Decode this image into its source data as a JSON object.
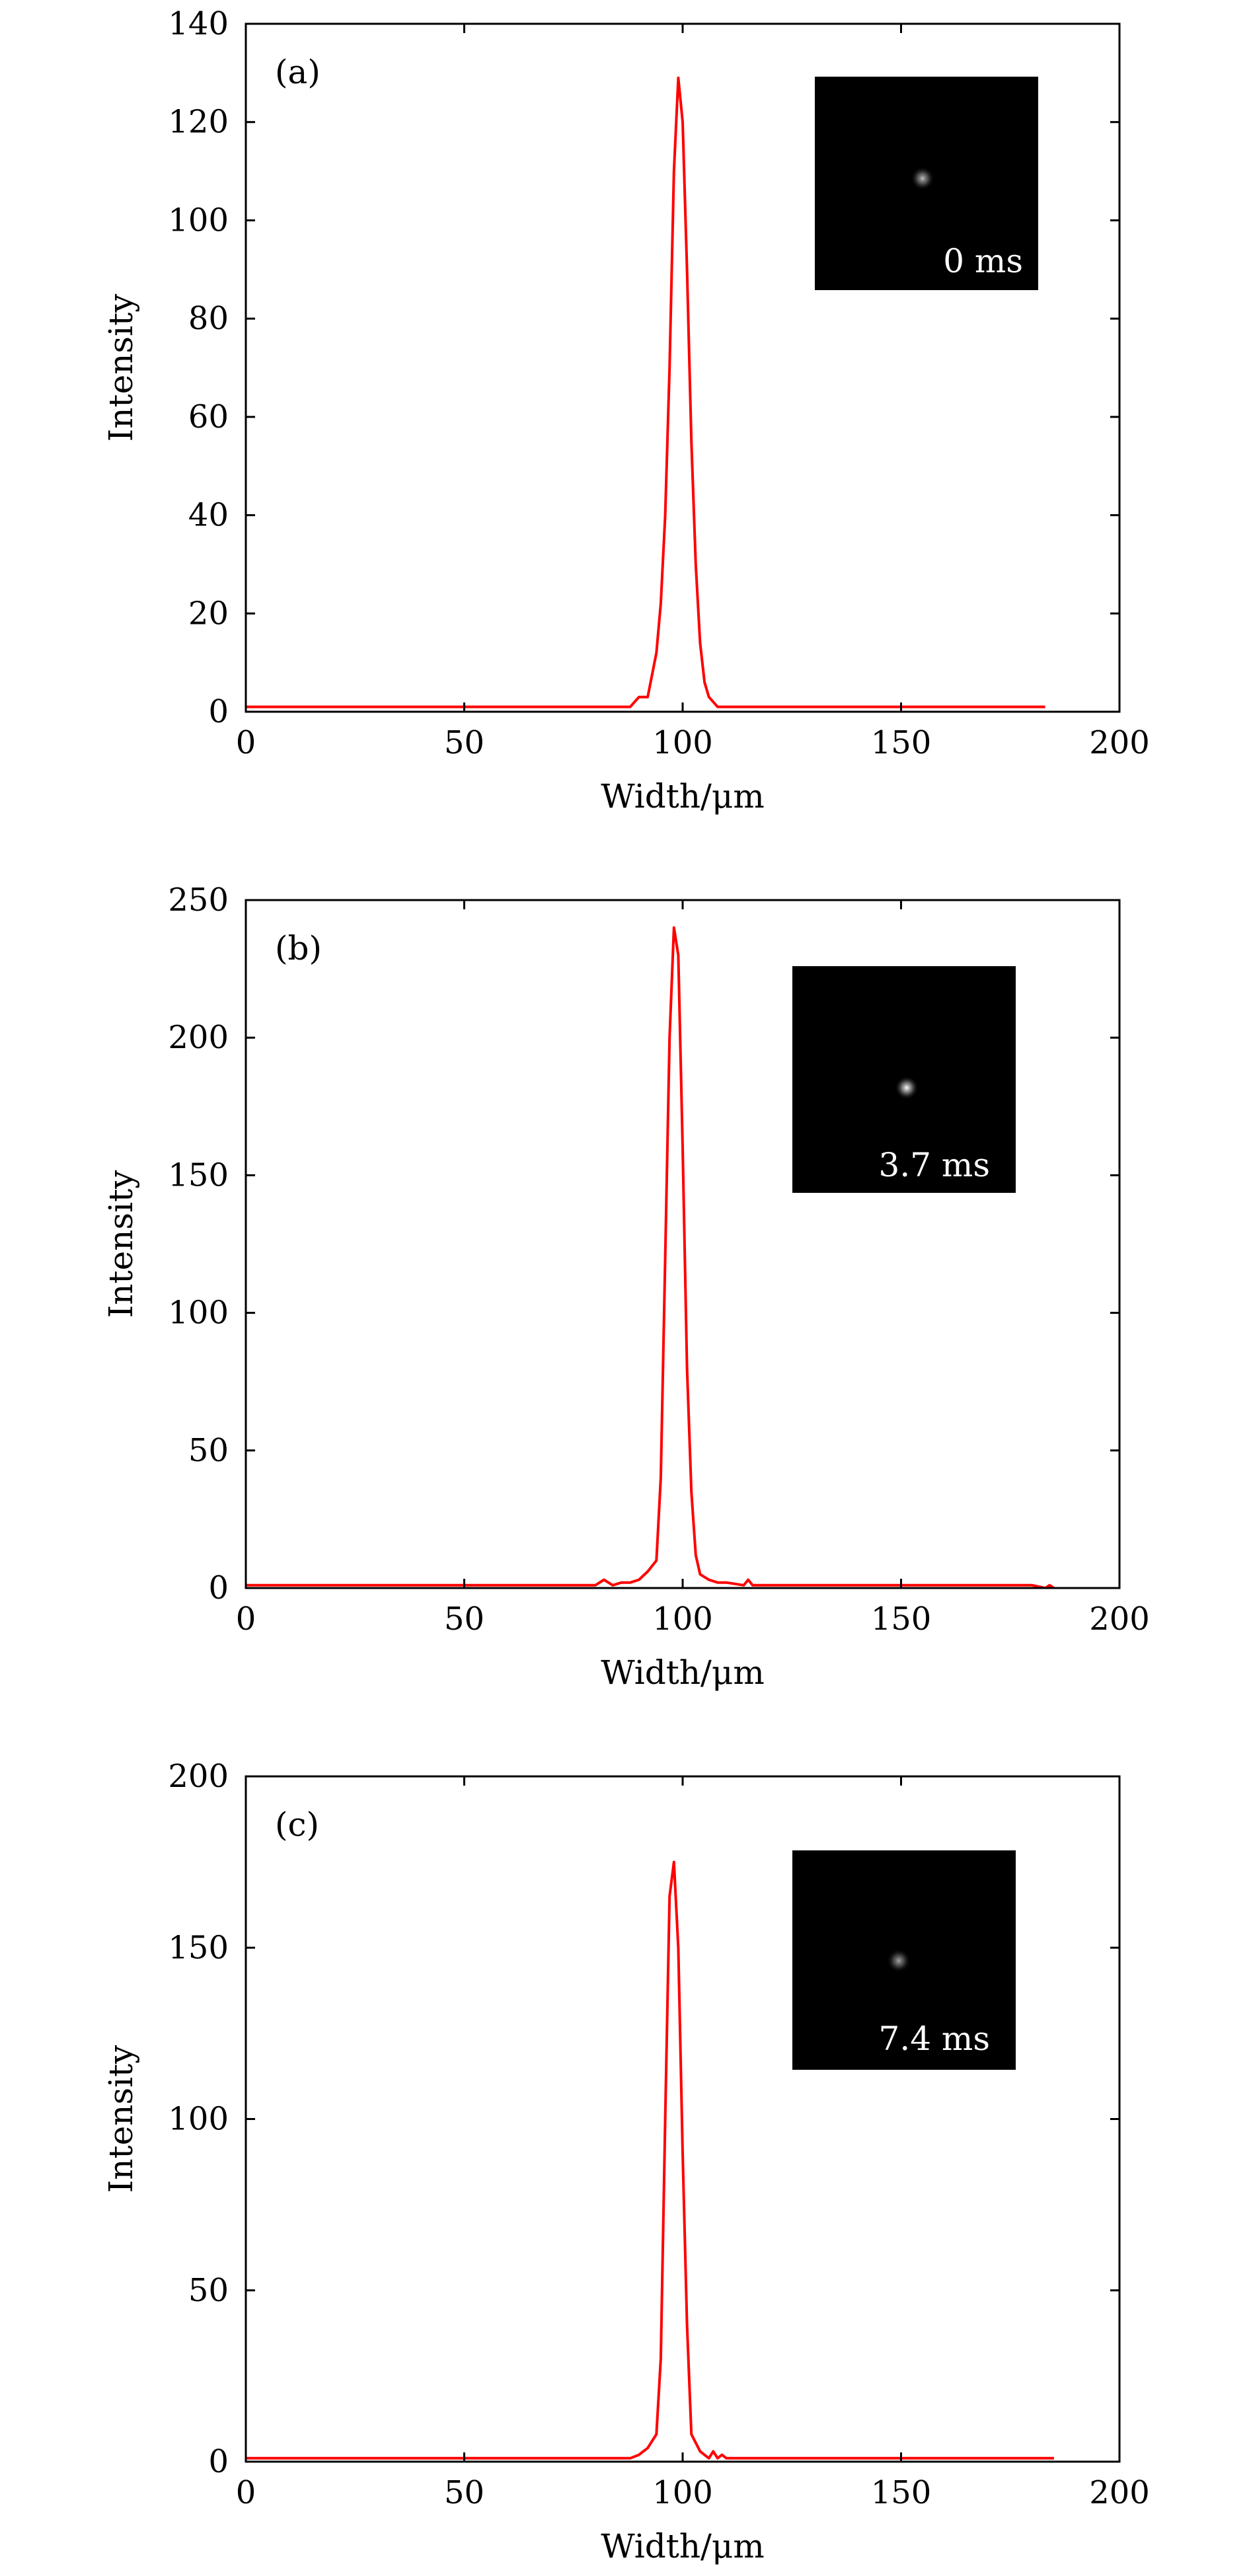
{
  "chart_data": [
    {
      "type": "line",
      "panel_label": "(a)",
      "xlabel": "Width/μm",
      "ylabel": "Intensity",
      "xlim": [
        0,
        200
      ],
      "ylim": [
        0,
        140
      ],
      "xticks": [
        0,
        50,
        100,
        150,
        200
      ],
      "yticks": [
        0,
        20,
        40,
        60,
        80,
        100,
        120,
        140
      ],
      "grid": false,
      "series": [
        {
          "color": "#ff0000",
          "x": [
            0,
            20,
            40,
            60,
            80,
            88,
            90,
            92,
            94,
            95,
            96,
            97,
            98,
            99,
            100,
            101,
            102,
            103,
            104,
            105,
            106,
            108,
            110,
            120,
            150,
            183
          ],
          "y": [
            1,
            1,
            1,
            1,
            1,
            1,
            3,
            3,
            12,
            22,
            40,
            70,
            110,
            129,
            120,
            90,
            55,
            30,
            14,
            6,
            3,
            1,
            1,
            1,
            1,
            1
          ]
        }
      ],
      "inset": {
        "label": "0 ms",
        "spot_brightness": 0.75
      }
    },
    {
      "type": "line",
      "panel_label": "(b)",
      "xlabel": "Width/μm",
      "ylabel": "Intensity",
      "xlim": [
        0,
        200
      ],
      "ylim": [
        0,
        250
      ],
      "xticks": [
        0,
        50,
        100,
        150,
        200
      ],
      "yticks": [
        0,
        50,
        100,
        150,
        200,
        250
      ],
      "grid": false,
      "series": [
        {
          "color": "#ff0000",
          "x": [
            0,
            20,
            40,
            60,
            80,
            82,
            84,
            86,
            88,
            90,
            92,
            94,
            95,
            96,
            97,
            98,
            99,
            100,
            101,
            102,
            103,
            104,
            106,
            108,
            110,
            114,
            115,
            116,
            130,
            150,
            180,
            183,
            184,
            185
          ],
          "y": [
            1,
            1,
            1,
            1,
            1,
            3,
            1,
            2,
            2,
            3,
            6,
            10,
            40,
            120,
            200,
            240,
            230,
            160,
            80,
            35,
            12,
            5,
            3,
            2,
            2,
            1,
            3,
            1,
            1,
            1,
            1,
            0,
            1,
            0
          ]
        }
      ],
      "inset": {
        "label": "3.7 ms",
        "spot_brightness": 1.0
      }
    },
    {
      "type": "line",
      "panel_label": "(c)",
      "xlabel": "Width/μm",
      "ylabel": "Intensity",
      "xlim": [
        0,
        200
      ],
      "ylim": [
        0,
        200
      ],
      "xticks": [
        0,
        50,
        100,
        150,
        200
      ],
      "yticks": [
        0,
        50,
        100,
        150,
        200
      ],
      "grid": false,
      "series": [
        {
          "color": "#ff0000",
          "x": [
            0,
            20,
            40,
            60,
            80,
            88,
            90,
            92,
            94,
            95,
            96,
            97,
            98,
            99,
            100,
            101,
            102,
            104,
            106,
            107,
            108,
            109,
            110,
            111,
            120,
            150,
            185
          ],
          "y": [
            1,
            1,
            1,
            1,
            1,
            1,
            2,
            4,
            8,
            30,
            100,
            165,
            175,
            150,
            90,
            40,
            8,
            3,
            1,
            3,
            1,
            2,
            1,
            1,
            1,
            1,
            1
          ]
        }
      ],
      "inset": {
        "label": "7.4 ms",
        "spot_brightness": 0.65
      }
    }
  ]
}
